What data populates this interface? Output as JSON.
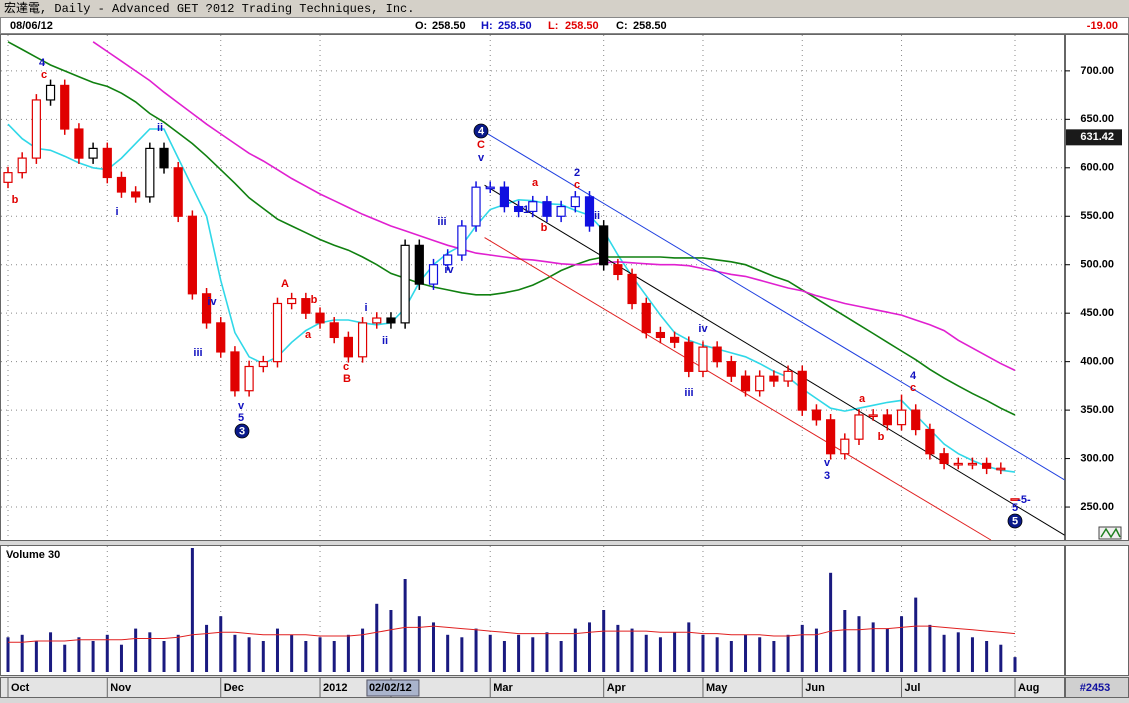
{
  "window": {
    "title": "宏達電, Daily - Advanced GET ?012 Trading Techniques, Inc."
  },
  "header": {
    "date": "08/06/12",
    "ohlc": [
      {
        "name": "O:",
        "value": "258.50",
        "color": "#000000"
      },
      {
        "name": "H:",
        "value": "258.50",
        "color": "#1010c0"
      },
      {
        "name": "L:",
        "value": "258.50",
        "color": "#e00000"
      },
      {
        "name": "C:",
        "value": "258.50",
        "color": "#000000"
      }
    ],
    "change": "-19.00"
  },
  "chart_data": [
    {
      "type": "candlestick",
      "categories": [
        "Oct",
        null,
        null,
        null,
        null,
        null,
        null,
        "Nov",
        null,
        null,
        null,
        null,
        null,
        null,
        null,
        "Dec",
        null,
        null,
        null,
        null,
        null,
        null,
        "2012",
        null,
        null,
        null,
        null,
        "02/02/12",
        null,
        null,
        null,
        null,
        null,
        null,
        "Mar",
        null,
        null,
        null,
        null,
        null,
        null,
        null,
        "Apr",
        null,
        null,
        null,
        null,
        null,
        null,
        "May",
        null,
        null,
        null,
        null,
        null,
        null,
        "Jun",
        null,
        null,
        null,
        null,
        null,
        null,
        "Jul",
        null,
        null,
        null,
        null,
        null,
        null,
        null,
        "Aug"
      ],
      "open": [
        585,
        595,
        610,
        670,
        685,
        640,
        610,
        620,
        590,
        575,
        570,
        620,
        600,
        550,
        470,
        440,
        410,
        370,
        395,
        400,
        460,
        465,
        450,
        440,
        425,
        405,
        440,
        445,
        440,
        520,
        480,
        500,
        510,
        540,
        580,
        580,
        560,
        555,
        565,
        550,
        560,
        570,
        540,
        500,
        490,
        460,
        430,
        425,
        420,
        390,
        415,
        400,
        385,
        370,
        385,
        380,
        390,
        350,
        340,
        305,
        320,
        345,
        345,
        335,
        350,
        330,
        305,
        295,
        295,
        295,
        290,
        258.5
      ],
      "high": [
        601,
        616,
        676,
        691,
        691,
        646,
        626,
        626,
        596,
        581,
        626,
        626,
        606,
        556,
        476,
        446,
        416,
        401,
        406,
        466,
        471,
        471,
        456,
        446,
        431,
        446,
        451,
        451,
        526,
        526,
        506,
        516,
        546,
        586,
        586,
        586,
        566,
        571,
        571,
        566,
        576,
        576,
        546,
        506,
        496,
        466,
        436,
        431,
        426,
        421,
        421,
        406,
        391,
        391,
        391,
        396,
        396,
        356,
        346,
        326,
        351,
        351,
        351,
        366,
        356,
        336,
        311,
        301,
        301,
        301,
        296,
        258.5
      ],
      "low": [
        579,
        589,
        604,
        664,
        634,
        604,
        604,
        584,
        569,
        564,
        564,
        594,
        544,
        464,
        434,
        404,
        364,
        364,
        389,
        394,
        454,
        444,
        434,
        419,
        399,
        399,
        434,
        434,
        434,
        474,
        474,
        494,
        504,
        534,
        574,
        554,
        549,
        549,
        544,
        544,
        554,
        534,
        494,
        484,
        454,
        424,
        419,
        414,
        384,
        384,
        394,
        379,
        364,
        364,
        374,
        374,
        344,
        334,
        299,
        299,
        314,
        339,
        329,
        329,
        324,
        299,
        289,
        289,
        289,
        284,
        284,
        258.5
      ],
      "close": [
        595,
        610,
        670,
        685,
        640,
        610,
        620,
        590,
        575,
        570,
        620,
        600,
        550,
        470,
        440,
        410,
        370,
        395,
        400,
        460,
        465,
        450,
        440,
        425,
        405,
        440,
        445,
        440,
        520,
        480,
        500,
        510,
        540,
        580,
        580,
        560,
        555,
        565,
        550,
        560,
        570,
        540,
        500,
        490,
        460,
        430,
        425,
        420,
        390,
        415,
        400,
        385,
        370,
        385,
        380,
        390,
        350,
        340,
        305,
        320,
        345,
        345,
        335,
        350,
        330,
        305,
        295,
        295,
        295,
        290,
        290,
        258.5
      ],
      "bar_colors": [
        "#e00000",
        "#e00000",
        "#e00000",
        "#000000",
        "#e00000",
        "#e00000",
        "#000000",
        "#e00000",
        "#e00000",
        "#e00000",
        "#000000",
        "#000000",
        "#e00000",
        "#e00000",
        "#e00000",
        "#e00000",
        "#e00000",
        "#e00000",
        "#e00000",
        "#e00000",
        "#e00000",
        "#e00000",
        "#e00000",
        "#e00000",
        "#e00000",
        "#e00000",
        "#e00000",
        "#000000",
        "#000000",
        "#000000",
        "#1010e0",
        "#1010e0",
        "#1010e0",
        "#1010e0",
        "#1010e0",
        "#1010e0",
        "#1010e0",
        "#1010e0",
        "#1010e0",
        "#1010e0",
        "#1010e0",
        "#1010e0",
        "#000000",
        "#e00000",
        "#e00000",
        "#e00000",
        "#e00000",
        "#e00000",
        "#e00000",
        "#e00000",
        "#e00000",
        "#e00000",
        "#e00000",
        "#e00000",
        "#e00000",
        "#e00000",
        "#e00000",
        "#e00000",
        "#e00000",
        "#e00000",
        "#e00000",
        "#e00000",
        "#e00000",
        "#e00000",
        "#e00000",
        "#e00000",
        "#e00000",
        "#e00000",
        "#e00000",
        "#e00000",
        "#e00000",
        "#e00000"
      ],
      "overlays": [
        {
          "color": "#30d8e8",
          "values": [
            645,
            630,
            620,
            618,
            612,
            605,
            600,
            598,
            610,
            625,
            640,
            640,
            610,
            580,
            550,
            484,
            430,
            405,
            398,
            405,
            420,
            432,
            440,
            443,
            443,
            440,
            438,
            440,
            455,
            482,
            500,
            512,
            520,
            540,
            557,
            562,
            567,
            566,
            563,
            562,
            556,
            551,
            535,
            510,
            488,
            468,
            448,
            430,
            422,
            417,
            413,
            409,
            405,
            398,
            390,
            384,
            372,
            362,
            352,
            349,
            352,
            355,
            358,
            360,
            345,
            330,
            315,
            305,
            298,
            292,
            288,
            286
          ]
        },
        {
          "color": "#108010",
          "values": [
            730,
            722,
            714,
            706,
            700,
            694,
            688,
            684,
            677,
            668,
            656,
            647,
            636,
            625,
            612,
            598,
            584,
            569,
            558,
            547,
            540,
            533,
            526,
            520,
            515,
            508,
            500,
            491,
            486,
            481,
            477,
            474,
            471,
            469,
            469,
            471,
            474,
            479,
            486,
            494,
            500,
            505,
            508,
            508,
            508,
            508,
            508,
            507,
            507,
            507,
            505,
            503,
            500,
            494,
            488,
            483,
            474,
            465,
            456,
            447,
            438,
            429,
            420,
            411,
            402,
            392,
            383,
            375,
            367,
            360,
            352,
            345
          ]
        },
        {
          "color": "#e020d0",
          "values": [
            null,
            null,
            null,
            null,
            null,
            null,
            730,
            720,
            710,
            700,
            690,
            678,
            667,
            656,
            645,
            635,
            625,
            615,
            607,
            598,
            589,
            581,
            573,
            566,
            559,
            552,
            546,
            540,
            535,
            530,
            525,
            520,
            516,
            512,
            510,
            508,
            506,
            505,
            503,
            501,
            500,
            500,
            502,
            503,
            502,
            501,
            500,
            500,
            499,
            496,
            493,
            490,
            488,
            484,
            480,
            476,
            473,
            468,
            464,
            460,
            457,
            454,
            451,
            448,
            443,
            438,
            432,
            422,
            414,
            406,
            398,
            391
          ]
        }
      ],
      "trendlines": [
        {
          "color": "#2040e0",
          "x": [
            33.6,
            74.5
          ],
          "y": [
            637,
            278
          ]
        },
        {
          "color": "#000000",
          "x": [
            33.6,
            74.5
          ],
          "y": [
            582,
            221
          ]
        },
        {
          "color": "#e02020",
          "x": [
            33.6,
            69.3
          ],
          "y": [
            528,
            216
          ]
        }
      ],
      "ylim": [
        216,
        737
      ],
      "yticks": [
        {
          "value": 250,
          "label": "250.00"
        },
        {
          "value": 300,
          "label": "300.00"
        },
        {
          "value": 350,
          "label": "350.00"
        },
        {
          "value": 400,
          "label": "400.00"
        },
        {
          "value": 450,
          "label": "450.00"
        },
        {
          "value": 500,
          "label": "500.00"
        },
        {
          "value": 550,
          "label": "550.00"
        },
        {
          "value": 600,
          "label": "600.00"
        },
        {
          "value": 650,
          "label": "650.00"
        },
        {
          "value": 700,
          "label": "700.00"
        }
      ],
      "grid": true,
      "cursor_price": {
        "value": 631.42,
        "label": "631.42"
      },
      "annotations": [
        {
          "text": "4",
          "color": "#1010c0"
        },
        {
          "text": "c",
          "color": "#e00000"
        },
        {
          "text": "b",
          "color": "#e00000"
        },
        {
          "text": "i",
          "color": "#1010c0"
        },
        {
          "text": "ii",
          "color": "#1010c0"
        },
        {
          "text": "iv",
          "color": "#1010c0"
        },
        {
          "text": "iii",
          "color": "#1010c0"
        },
        {
          "text": "v",
          "color": "#1010c0"
        },
        {
          "text": "5",
          "color": "#1010c0"
        },
        {
          "text": "3",
          "color": "#0a1a8a",
          "circled": true
        },
        {
          "text": "A",
          "color": "#e00000"
        },
        {
          "text": "a",
          "color": "#e00000"
        },
        {
          "text": "b",
          "color": "#e00000"
        },
        {
          "text": "c",
          "color": "#e00000"
        },
        {
          "text": "B",
          "color": "#e00000"
        },
        {
          "text": "i",
          "color": "#1010c0"
        },
        {
          "text": "ii",
          "color": "#1010c0"
        },
        {
          "text": "iii",
          "color": "#1010c0"
        },
        {
          "text": "iv",
          "color": "#1010c0"
        },
        {
          "text": "4",
          "color": "#0a1a8a",
          "circled": true
        },
        {
          "text": "C",
          "color": "#e00000"
        },
        {
          "text": "v",
          "color": "#1010c0"
        },
        {
          "text": "a",
          "color": "#e00000"
        },
        {
          "text": "1",
          "color": "#1010c0"
        },
        {
          "text": "b",
          "color": "#e00000"
        },
        {
          "text": "2",
          "color": "#1010c0"
        },
        {
          "text": "c",
          "color": "#e00000"
        },
        {
          "text": "ii",
          "color": "#1010c0"
        },
        {
          "text": "iv",
          "color": "#1010c0"
        },
        {
          "text": "iii",
          "color": "#1010c0"
        },
        {
          "text": "v",
          "color": "#1010c0"
        },
        {
          "text": "3",
          "color": "#1010c0"
        },
        {
          "text": "a",
          "color": "#e00000"
        },
        {
          "text": "b",
          "color": "#e00000"
        },
        {
          "text": "4",
          "color": "#1010c0"
        },
        {
          "text": "c",
          "color": "#e00000"
        },
        {
          "text": "-5-",
          "color": "#1010c0"
        },
        {
          "text": "5",
          "color": "#1010c0"
        },
        {
          "text": "5",
          "color": "#0a1a8a",
          "circled": true
        }
      ]
    },
    {
      "type": "bar",
      "title": "Volume 30",
      "color": "#1a1a80",
      "values": [
        28,
        30,
        25,
        32,
        22,
        28,
        25,
        30,
        22,
        35,
        32,
        25,
        30,
        100,
        38,
        45,
        30,
        28,
        25,
        35,
        30,
        25,
        28,
        25,
        30,
        35,
        55,
        50,
        75,
        45,
        40,
        30,
        28,
        35,
        30,
        25,
        30,
        28,
        32,
        25,
        35,
        40,
        50,
        38,
        35,
        30,
        28,
        32,
        40,
        30,
        28,
        25,
        30,
        28,
        25,
        30,
        38,
        35,
        80,
        50,
        45,
        40,
        35,
        45,
        60,
        38,
        30,
        32,
        28,
        25,
        22,
        12
      ],
      "average": {
        "color": "#e02020",
        "values": [
          24,
          24,
          25,
          25,
          25,
          26,
          26,
          26,
          26,
          27,
          27,
          27,
          28,
          30,
          31,
          32,
          32,
          31,
          30,
          30,
          30,
          30,
          29,
          29,
          29,
          30,
          32,
          34,
          36,
          36,
          37,
          36,
          35,
          34,
          33,
          32,
          31,
          31,
          31,
          31,
          31,
          32,
          33,
          33,
          33,
          33,
          32,
          32,
          32,
          31,
          31,
          30,
          30,
          30,
          29,
          29,
          30,
          30,
          33,
          34,
          34,
          35,
          35,
          36,
          37,
          37,
          36,
          35,
          34,
          33,
          32,
          31
        ]
      },
      "ylim": [
        0,
        100
      ]
    }
  ],
  "footer": {
    "id": "#2453"
  }
}
